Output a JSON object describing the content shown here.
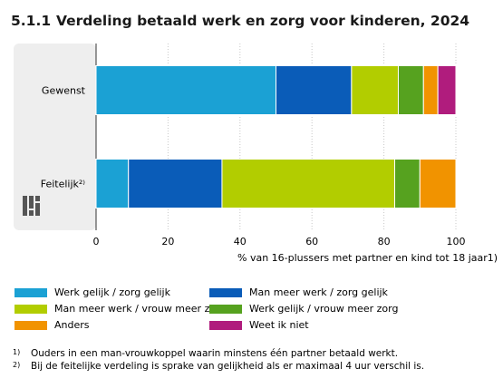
{
  "title": {
    "number": "5.1.1",
    "text": "Verdeling betaald werk en zorg voor kinderen, 2024"
  },
  "colors": {
    "Werk gelijk / zorg gelijk": "#1ba1d4",
    "Man meer werk / zorg gelijk": "#0a5cb8",
    "Man meer werk / vrouw meer zorg": "#b2cd00",
    "Werk gelijk / vrouw meer zorg": "#56a21f",
    "Anders": "#f19300",
    "Weet ik niet": "#b01c7d"
  },
  "chart_data": {
    "type": "bar",
    "orientation": "horizontal",
    "stacked": true,
    "categories": [
      "Gewenst",
      "Feitelijk²⁾"
    ],
    "series": [
      {
        "name": "Werk gelijk / zorg gelijk",
        "values": [
          50,
          9
        ]
      },
      {
        "name": "Man meer werk / zorg gelijk",
        "values": [
          21,
          26
        ]
      },
      {
        "name": "Man meer werk / vrouw meer zorg",
        "values": [
          13,
          48
        ]
      },
      {
        "name": "Werk gelijk / vrouw meer zorg",
        "values": [
          7,
          7
        ]
      },
      {
        "name": "Anders",
        "values": [
          4,
          10
        ]
      },
      {
        "name": "Weet ik niet",
        "values": [
          5,
          0
        ]
      }
    ],
    "xlim": [
      0,
      100
    ],
    "xticks": [
      "0",
      "20",
      "40",
      "60",
      "80",
      "100"
    ],
    "xlabel": "% van 16-plussers met partner en kind tot 18 jaar1)",
    "grid": true,
    "legend_position": "bottom"
  },
  "footnotes": [
    {
      "mark": "1)",
      "text": "Ouders in een man-vrouwkoppel waarin minstens één partner betaald werkt."
    },
    {
      "mark": "2)",
      "text": "Bij de feitelijke verdeling is sprake van gelijkheid als er maximaal 4 uur verschil is."
    }
  ]
}
